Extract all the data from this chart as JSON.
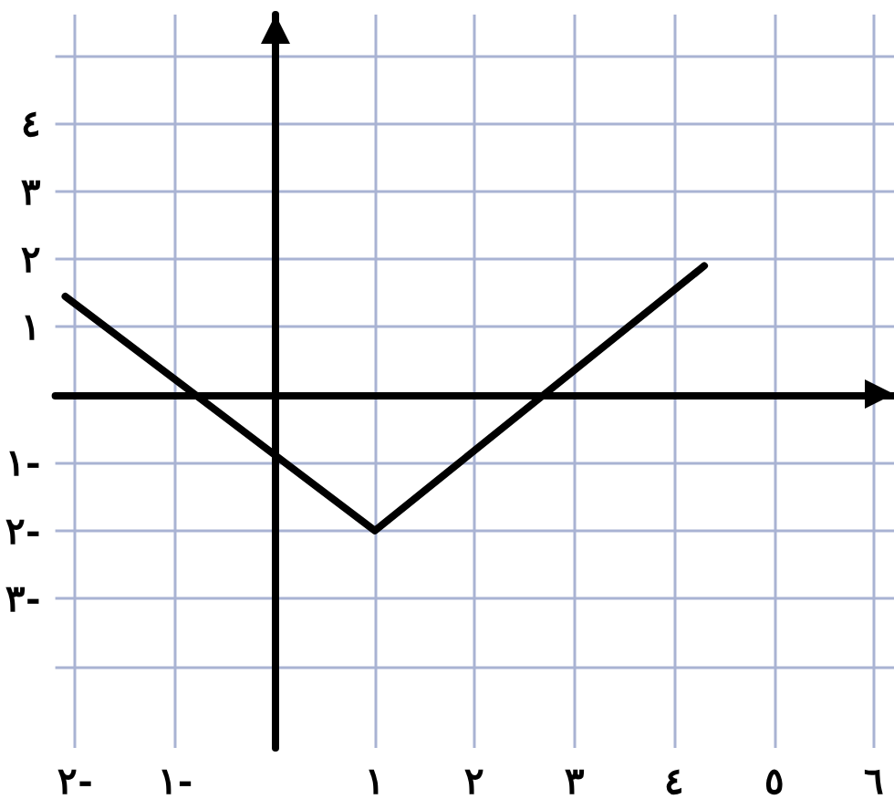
{
  "chart_data": {
    "type": "line",
    "series": [
      {
        "color": "#000000",
        "x": [
          -2.1,
          1,
          4.3
        ],
        "values": [
          1.45,
          -2,
          1.9
        ]
      }
    ],
    "xlim": [
      -2.2,
      6.2
    ],
    "ylim": [
      -5.2,
      5.6
    ],
    "xticks": [
      {
        "value": -2,
        "label": "٢-"
      },
      {
        "value": -1,
        "label": "١-"
      },
      {
        "value": 0,
        "label": null
      },
      {
        "value": 1,
        "label": "١"
      },
      {
        "value": 2,
        "label": "٢"
      },
      {
        "value": 3,
        "label": "٣"
      },
      {
        "value": 4,
        "label": "٤"
      },
      {
        "value": 5,
        "label": "٥"
      },
      {
        "value": 6,
        "label": "٦"
      }
    ],
    "yticks": [
      {
        "value": -4,
        "label": null
      },
      {
        "value": -3,
        "label": "٣-"
      },
      {
        "value": -2,
        "label": "٢-"
      },
      {
        "value": -1,
        "label": "١-"
      },
      {
        "value": 0,
        "label": null
      },
      {
        "value": 1,
        "label": "١"
      },
      {
        "value": 2,
        "label": "٢"
      },
      {
        "value": 3,
        "label": "٣"
      },
      {
        "value": 4,
        "label": "٤"
      },
      {
        "value": 5,
        "label": null
      }
    ],
    "grid": true,
    "marker": "none",
    "line_style": "solid"
  }
}
